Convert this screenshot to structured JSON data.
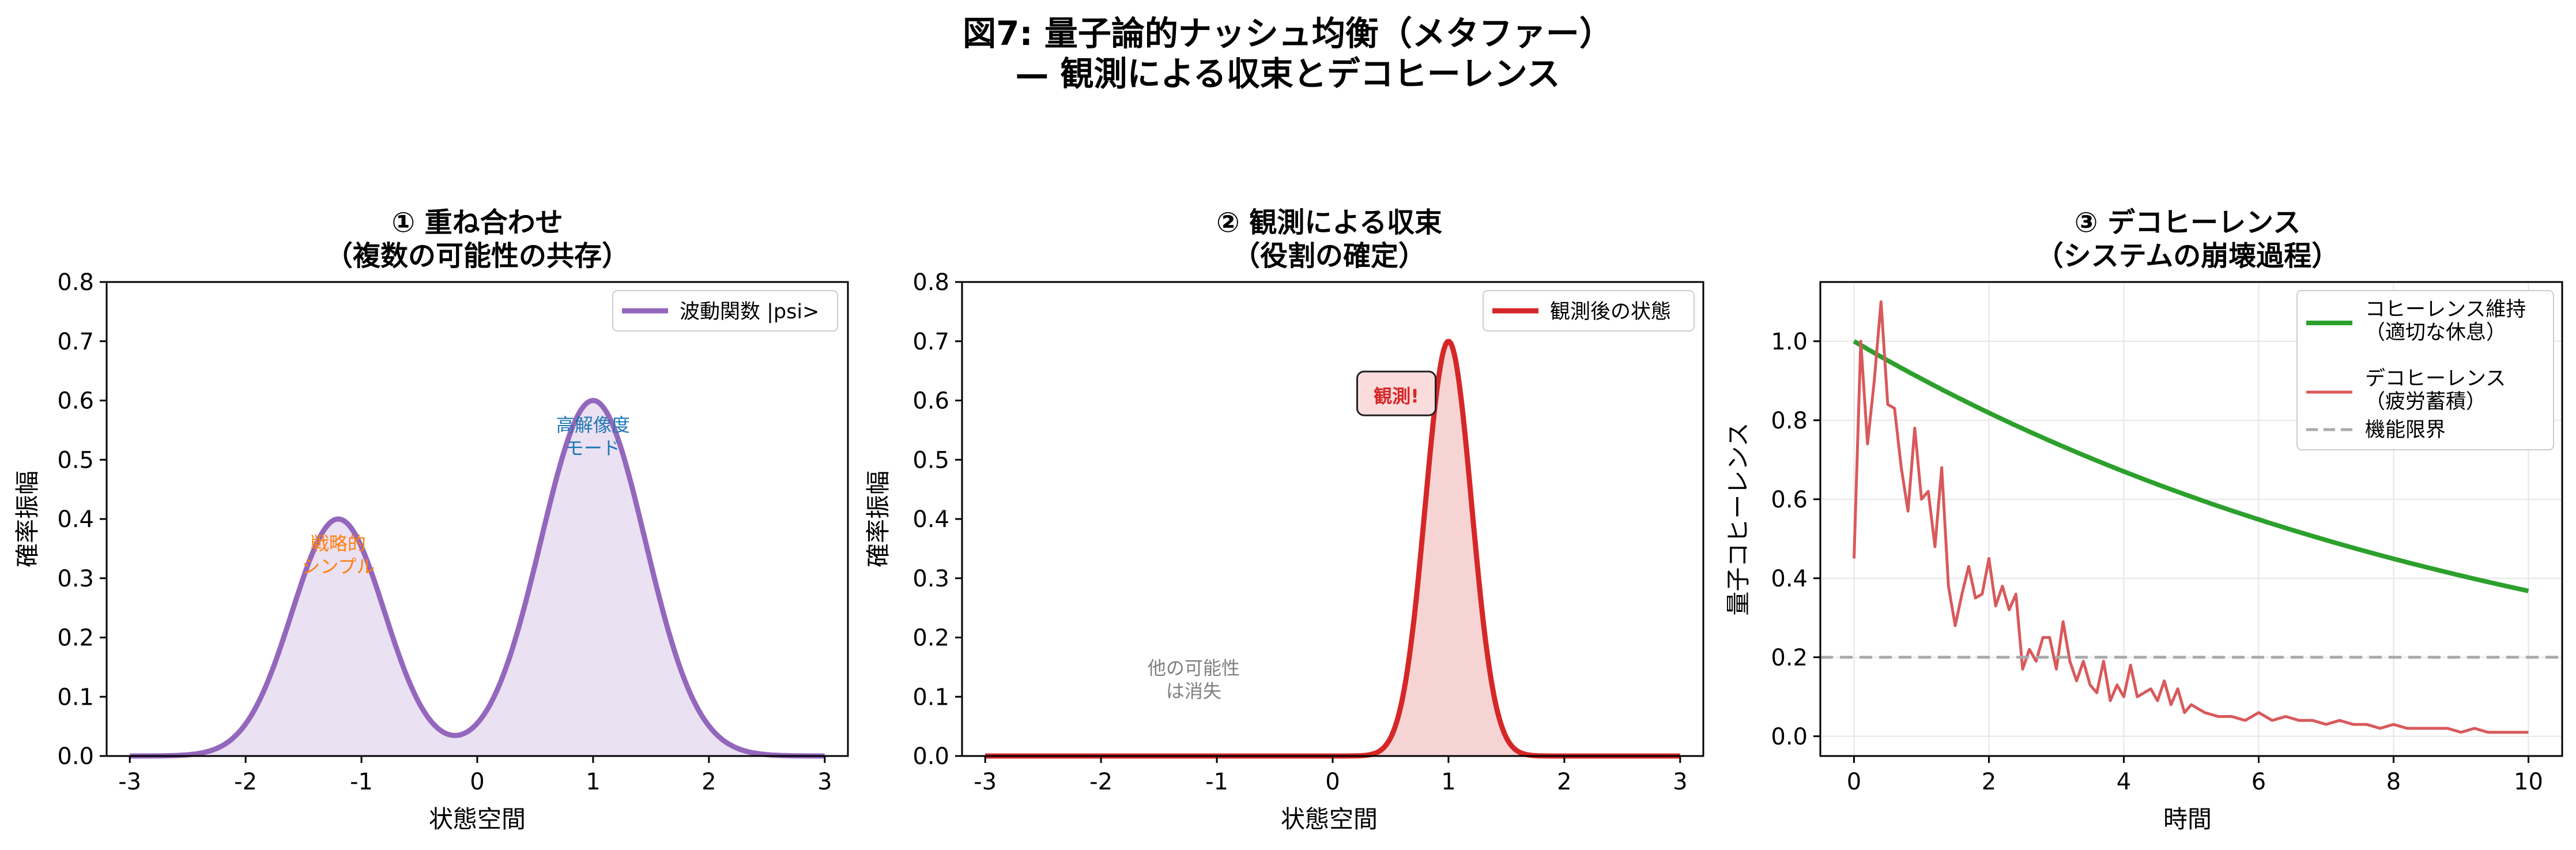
{
  "figure": {
    "title_line1": "図7: 量子論的ナッシュ均衡（メタファー）",
    "title_line2": "— 観測による収束とデコヒーレンス"
  },
  "chart_data": [
    {
      "type": "area",
      "title_line1": "① 重ね合わせ",
      "title_line2": "（複数の可能性の共存）",
      "xlabel": "状態空間",
      "ylabel": "確率振幅",
      "xlim": [
        -3.2,
        3.2
      ],
      "ylim": [
        0,
        0.8
      ],
      "xticks": [
        "-3",
        "-2",
        "-1",
        "0",
        "1",
        "2",
        "3"
      ],
      "yticks": [
        "0.0",
        "0.1",
        "0.2",
        "0.3",
        "0.4",
        "0.5",
        "0.6",
        "0.7",
        "0.8"
      ],
      "grid": false,
      "legend_position": "upper-right",
      "series": [
        {
          "name": "波動関数 |psi>",
          "color": "#9467bd",
          "function": "bimodal_gaussian",
          "components": [
            {
              "amplitude": 0.4,
              "center": -1.2,
              "sigma": 0.4
            },
            {
              "amplitude": 0.6,
              "center": 1.0,
              "sigma": 0.45
            }
          ],
          "x_range": [
            -3,
            3
          ]
        }
      ],
      "annotations": [
        {
          "text_line1": "戦略的",
          "text_line2": "シンプル",
          "x": -1.2,
          "y": 0.34,
          "color": "#ff7f0e"
        },
        {
          "text_line1": "高解像度",
          "text_line2": "モード",
          "x": 1.0,
          "y": 0.54,
          "color": "#1f77b4"
        }
      ]
    },
    {
      "type": "area",
      "title_line1": "② 観測による収束",
      "title_line2": "（役割の確定）",
      "xlabel": "状態空間",
      "ylabel": "確率振幅",
      "xlim": [
        -3.2,
        3.2
      ],
      "ylim": [
        0,
        0.8
      ],
      "xticks": [
        "-3",
        "-2",
        "-1",
        "0",
        "1",
        "2",
        "3"
      ],
      "yticks": [
        "0.0",
        "0.1",
        "0.2",
        "0.3",
        "0.4",
        "0.5",
        "0.6",
        "0.7",
        "0.8"
      ],
      "grid": false,
      "legend_position": "upper-right",
      "series": [
        {
          "name": "観測後の状態",
          "color": "#d62728",
          "function": "gaussian",
          "components": [
            {
              "amplitude": 0.7,
              "center": 1.0,
              "sigma": 0.2
            }
          ],
          "x_range": [
            -3,
            3
          ]
        }
      ],
      "annotations": [
        {
          "text_line1": "観測!",
          "x": 0.55,
          "y": 0.61,
          "color": "#d62728",
          "boxed": true
        },
        {
          "text_line1": "他の可能性",
          "text_line2": "は消失",
          "x": -1.2,
          "y": 0.13,
          "color": "#808080"
        }
      ]
    },
    {
      "type": "line",
      "title_line1": "③ デコヒーレンス",
      "title_line2": "（システムの崩壊過程）",
      "xlabel": "時間",
      "ylabel": "量子コヒーレンス",
      "xlim": [
        -0.5,
        10.5
      ],
      "ylim": [
        -0.05,
        1.15
      ],
      "xticks": [
        0,
        2,
        4,
        6,
        8,
        10
      ],
      "yticks": [
        0.0,
        0.2,
        0.4,
        0.6,
        0.8,
        1.0
      ],
      "grid": true,
      "legend_position": "upper-right",
      "series": [
        {
          "name_line1": "コヒーレンス維持",
          "name_line2": "（適切な休息）",
          "color": "#2ca02c",
          "style": "solid",
          "function": "exp_decay",
          "decay_rate": 0.1
        },
        {
          "name_line1": "デコヒーレンス",
          "name_line2": "（疲労蓄積）",
          "color": "#d9595b",
          "style": "solid",
          "x": [
            0.0,
            0.1,
            0.2,
            0.3,
            0.4,
            0.5,
            0.6,
            0.7,
            0.8,
            0.9,
            1.0,
            1.1,
            1.2,
            1.3,
            1.4,
            1.5,
            1.6,
            1.7,
            1.8,
            1.9,
            2.0,
            2.1,
            2.2,
            2.3,
            2.4,
            2.5,
            2.6,
            2.7,
            2.8,
            2.9,
            3.0,
            3.1,
            3.2,
            3.3,
            3.4,
            3.5,
            3.6,
            3.7,
            3.8,
            3.9,
            4.0,
            4.1,
            4.2,
            4.3,
            4.4,
            4.5,
            4.6,
            4.7,
            4.8,
            4.9,
            5.0,
            5.2,
            5.4,
            5.6,
            5.8,
            6.0,
            6.2,
            6.4,
            6.6,
            6.8,
            7.0,
            7.2,
            7.4,
            7.6,
            7.8,
            8.0,
            8.2,
            8.4,
            8.6,
            8.8,
            9.0,
            9.2,
            9.4,
            9.6,
            9.8,
            10.0
          ],
          "y": [
            0.45,
            1.0,
            0.74,
            0.9,
            1.1,
            0.84,
            0.83,
            0.68,
            0.57,
            0.78,
            0.6,
            0.62,
            0.48,
            0.68,
            0.38,
            0.28,
            0.36,
            0.43,
            0.35,
            0.36,
            0.45,
            0.33,
            0.38,
            0.32,
            0.36,
            0.17,
            0.22,
            0.19,
            0.25,
            0.25,
            0.17,
            0.29,
            0.19,
            0.14,
            0.19,
            0.13,
            0.11,
            0.19,
            0.09,
            0.13,
            0.1,
            0.18,
            0.1,
            0.11,
            0.12,
            0.09,
            0.14,
            0.08,
            0.12,
            0.06,
            0.08,
            0.06,
            0.05,
            0.05,
            0.04,
            0.06,
            0.04,
            0.05,
            0.04,
            0.04,
            0.03,
            0.04,
            0.03,
            0.03,
            0.02,
            0.03,
            0.02,
            0.02,
            0.02,
            0.02,
            0.01,
            0.02,
            0.01,
            0.01,
            0.01,
            0.01
          ]
        },
        {
          "name_line1": "機能限界",
          "color": "#aaaaaa",
          "style": "dashed",
          "y_constant": 0.2
        }
      ]
    }
  ]
}
